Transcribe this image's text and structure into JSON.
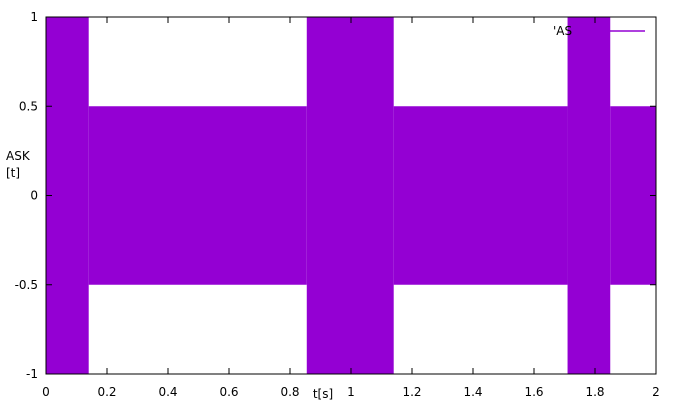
{
  "chart_data": {
    "type": "area",
    "title": "",
    "xlabel": "t[s]",
    "ylabel_lines": [
      "ASK",
      "[t]"
    ],
    "xlim": [
      0,
      2
    ],
    "ylim": [
      -1,
      1
    ],
    "x_ticks": [
      "0",
      "0.2",
      "0.4",
      "0.6",
      "0.8",
      "1",
      "1.2",
      "1.4",
      "1.6",
      "1.8",
      "2"
    ],
    "x_tick_values": [
      0,
      0.2,
      0.4,
      0.6,
      0.8,
      1,
      1.2,
      1.4,
      1.6,
      1.8,
      2
    ],
    "y_ticks": [
      "1",
      "0.5",
      "0",
      "-0.5",
      "-1"
    ],
    "y_tick_values": [
      1,
      0.5,
      0,
      -0.5,
      -1
    ],
    "grid": false,
    "legend_position": "top-right",
    "series": [
      {
        "name": "'AS",
        "color": "#9400d3",
        "segments": [
          {
            "x_start": 0.0,
            "x_end": 0.14,
            "amplitude": 1.0
          },
          {
            "x_start": 0.14,
            "x_end": 0.855,
            "amplitude": 0.5
          },
          {
            "x_start": 0.855,
            "x_end": 1.14,
            "amplitude": 1.0
          },
          {
            "x_start": 1.14,
            "x_end": 1.71,
            "amplitude": 0.5
          },
          {
            "x_start": 1.71,
            "x_end": 1.85,
            "amplitude": 1.0
          },
          {
            "x_start": 1.85,
            "x_end": 2.0,
            "amplitude": 0.5
          }
        ]
      }
    ]
  }
}
